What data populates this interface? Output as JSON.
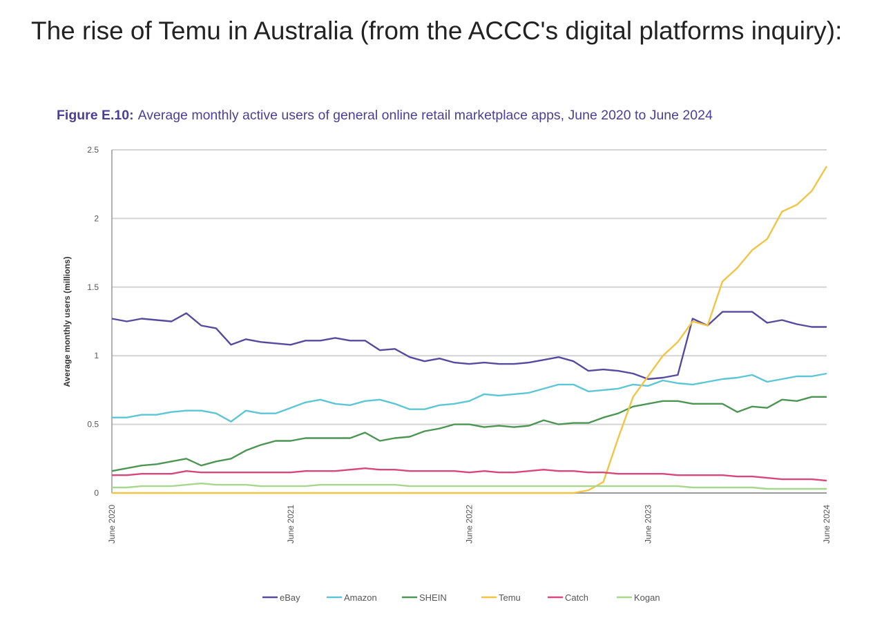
{
  "headline": "The rise of Temu in Australia (from the ACCC's digital platforms inquiry):",
  "chart_data": {
    "type": "line",
    "figure_label": "Figure E.10:",
    "title": "Average monthly active users of general online retail marketplace apps, June 2020 to June 2024",
    "xlabel": "",
    "ylabel": "Average monthly users (millions)",
    "ylim": [
      0,
      2.5
    ],
    "yticks": [
      "0",
      "0.5",
      "1",
      "1.5",
      "2",
      "2.5"
    ],
    "ytick_values": [
      0,
      0.5,
      1,
      1.5,
      2,
      2.5
    ],
    "xticks": [
      "June 2020",
      "June 2021",
      "June 2022",
      "June 2023",
      "June 2024"
    ],
    "xtick_index": [
      0,
      12,
      24,
      36,
      48
    ],
    "x": "monthly, June 2020 (index 0) to June 2024 (index 48)",
    "grid": true,
    "legend_position": "bottom",
    "series": [
      {
        "name": "eBay",
        "color": "#564a9e",
        "values": [
          1.27,
          1.25,
          1.27,
          1.26,
          1.25,
          1.31,
          1.22,
          1.2,
          1.08,
          1.12,
          1.1,
          1.09,
          1.08,
          1.11,
          1.11,
          1.13,
          1.11,
          1.11,
          1.04,
          1.05,
          0.99,
          0.96,
          0.98,
          0.95,
          0.94,
          0.95,
          0.94,
          0.94,
          0.95,
          0.97,
          0.99,
          0.96,
          0.89,
          0.9,
          0.89,
          0.87,
          0.83,
          0.84,
          0.86,
          1.27,
          1.22,
          1.32,
          1.32,
          1.32,
          1.24,
          1.26,
          1.23,
          1.21,
          1.21
        ]
      },
      {
        "name": "Amazon",
        "color": "#5cc6d4",
        "values": [
          0.55,
          0.55,
          0.57,
          0.57,
          0.59,
          0.6,
          0.6,
          0.58,
          0.52,
          0.6,
          0.58,
          0.58,
          0.62,
          0.66,
          0.68,
          0.65,
          0.64,
          0.67,
          0.68,
          0.65,
          0.61,
          0.61,
          0.64,
          0.65,
          0.67,
          0.72,
          0.71,
          0.72,
          0.73,
          0.76,
          0.79,
          0.79,
          0.74,
          0.75,
          0.76,
          0.79,
          0.78,
          0.82,
          0.8,
          0.79,
          0.81,
          0.83,
          0.84,
          0.86,
          0.81,
          0.83,
          0.85,
          0.85,
          0.87
        ]
      },
      {
        "name": "SHEIN",
        "color": "#4c9552",
        "values": [
          0.16,
          0.18,
          0.2,
          0.21,
          0.23,
          0.25,
          0.2,
          0.23,
          0.25,
          0.31,
          0.35,
          0.38,
          0.38,
          0.4,
          0.4,
          0.4,
          0.4,
          0.44,
          0.38,
          0.4,
          0.41,
          0.45,
          0.47,
          0.5,
          0.5,
          0.48,
          0.49,
          0.48,
          0.49,
          0.53,
          0.5,
          0.51,
          0.51,
          0.55,
          0.58,
          0.63,
          0.65,
          0.67,
          0.67,
          0.65,
          0.65,
          0.65,
          0.59,
          0.63,
          0.62,
          0.68,
          0.67,
          0.7,
          0.7
        ]
      },
      {
        "name": "Temu",
        "color": "#f2c443",
        "values": [
          0,
          0,
          0,
          0,
          0,
          0,
          0,
          0,
          0,
          0,
          0,
          0,
          0,
          0,
          0,
          0,
          0,
          0,
          0,
          0,
          0,
          0,
          0,
          0,
          0,
          0,
          0,
          0,
          0,
          0,
          0,
          0,
          0.02,
          0.08,
          0.4,
          0.7,
          0.85,
          1.0,
          1.1,
          1.25,
          1.22,
          1.54,
          1.64,
          1.77,
          1.85,
          2.05,
          2.1,
          2.2,
          2.38
        ]
      },
      {
        "name": "Catch",
        "color": "#d8477b",
        "values": [
          0.13,
          0.13,
          0.14,
          0.14,
          0.14,
          0.16,
          0.15,
          0.15,
          0.15,
          0.15,
          0.15,
          0.15,
          0.15,
          0.16,
          0.16,
          0.16,
          0.17,
          0.18,
          0.17,
          0.17,
          0.16,
          0.16,
          0.16,
          0.16,
          0.15,
          0.16,
          0.15,
          0.15,
          0.16,
          0.17,
          0.16,
          0.16,
          0.15,
          0.15,
          0.14,
          0.14,
          0.14,
          0.14,
          0.13,
          0.13,
          0.13,
          0.13,
          0.12,
          0.12,
          0.11,
          0.1,
          0.1,
          0.1,
          0.09
        ]
      },
      {
        "name": "Kogan",
        "color": "#a6d78c",
        "values": [
          0.04,
          0.04,
          0.05,
          0.05,
          0.05,
          0.06,
          0.07,
          0.06,
          0.06,
          0.06,
          0.05,
          0.05,
          0.05,
          0.05,
          0.06,
          0.06,
          0.06,
          0.06,
          0.06,
          0.06,
          0.05,
          0.05,
          0.05,
          0.05,
          0.05,
          0.05,
          0.05,
          0.05,
          0.05,
          0.05,
          0.05,
          0.05,
          0.05,
          0.05,
          0.05,
          0.05,
          0.05,
          0.05,
          0.05,
          0.04,
          0.04,
          0.04,
          0.04,
          0.04,
          0.03,
          0.03,
          0.03,
          0.03,
          0.03
        ]
      }
    ]
  }
}
